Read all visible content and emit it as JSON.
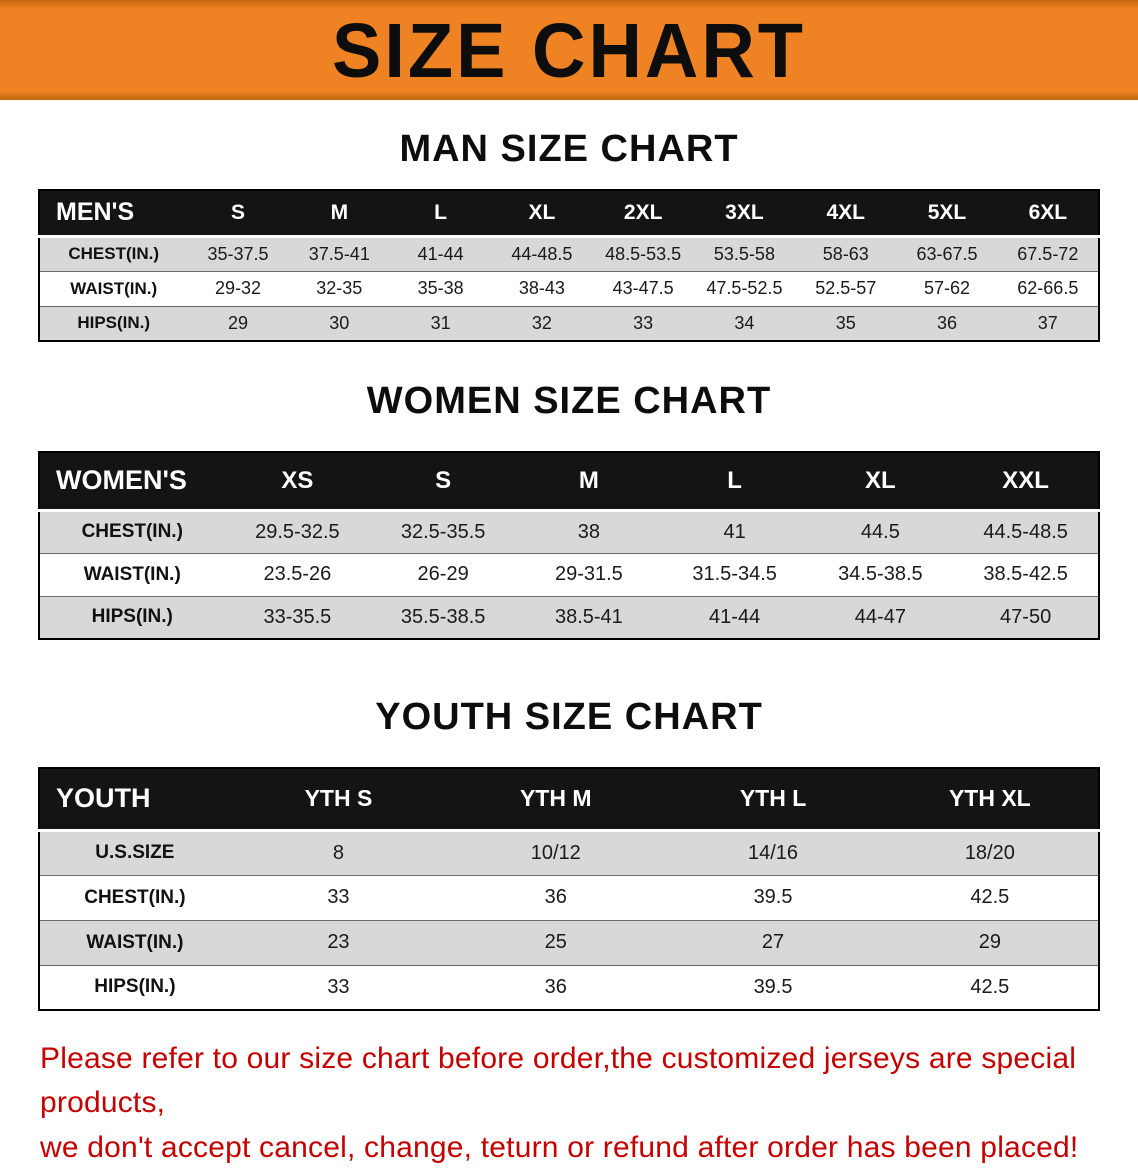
{
  "banner": {
    "title": "SIZE CHART"
  },
  "colors": {
    "banner_bg": "#ef8222",
    "table_header_bg": "#141414",
    "row_stripe": "#d8d8d8",
    "footer_text": "#c40000"
  },
  "chart_data": [
    {
      "type": "table",
      "title": "MAN SIZE CHART",
      "columns": [
        "MEN'S",
        "S",
        "M",
        "L",
        "XL",
        "2XL",
        "3XL",
        "4XL",
        "5XL",
        "6XL"
      ],
      "rows": [
        [
          "CHEST(IN.)",
          "35-37.5",
          "37.5-41",
          "41-44",
          "44-48.5",
          "48.5-53.5",
          "53.5-58",
          "58-63",
          "63-67.5",
          "67.5-72"
        ],
        [
          "WAIST(IN.)",
          "29-32",
          "32-35",
          "35-38",
          "38-43",
          "43-47.5",
          "47.5-52.5",
          "52.5-57",
          "57-62",
          "62-66.5"
        ],
        [
          "HIPS(IN.)",
          "29",
          "30",
          "31",
          "32",
          "33",
          "34",
          "35",
          "36",
          "37"
        ]
      ]
    },
    {
      "type": "table",
      "title": "WOMEN SIZE CHART",
      "columns": [
        "WOMEN'S",
        "XS",
        "S",
        "M",
        "L",
        "XL",
        "XXL"
      ],
      "rows": [
        [
          "CHEST(IN.)",
          "29.5-32.5",
          "32.5-35.5",
          "38",
          "41",
          "44.5",
          "44.5-48.5"
        ],
        [
          "WAIST(IN.)",
          "23.5-26",
          "26-29",
          "29-31.5",
          "31.5-34.5",
          "34.5-38.5",
          "38.5-42.5"
        ],
        [
          "HIPS(IN.)",
          "33-35.5",
          "35.5-38.5",
          "38.5-41",
          "41-44",
          "44-47",
          "47-50"
        ]
      ]
    },
    {
      "type": "table",
      "title": "YOUTH SIZE CHART",
      "columns": [
        "YOUTH",
        "YTH S",
        "YTH M",
        "YTH L",
        "YTH XL"
      ],
      "rows": [
        [
          "U.S.SIZE",
          "8",
          "10/12",
          "14/16",
          "18/20"
        ],
        [
          "CHEST(IN.)",
          "33",
          "36",
          "39.5",
          "42.5"
        ],
        [
          "WAIST(IN.)",
          "23",
          "25",
          "27",
          "29"
        ],
        [
          "HIPS(IN.)",
          "33",
          "36",
          "39.5",
          "42.5"
        ]
      ]
    }
  ],
  "footer": {
    "lines": [
      "Please refer to our size chart before order,the customized jerseys are special products,",
      "we don't accept cancel, change, teturn or refund after order has been placed!"
    ]
  }
}
